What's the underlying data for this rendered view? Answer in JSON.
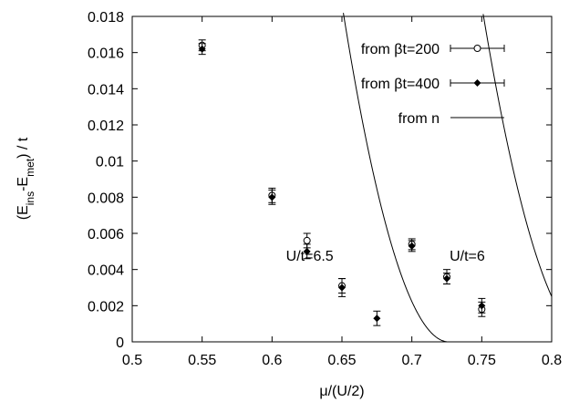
{
  "chart_data": {
    "type": "scatter",
    "xlabel": "μ/(U/2)",
    "ylabel_parts": {
      "pre": "(E",
      "sub1": "ins",
      "mid": "-E",
      "sub2": "met",
      "post": ") / t"
    },
    "xlim": [
      0.5,
      0.8
    ],
    "ylim": [
      0,
      0.018
    ],
    "xticks": [
      0.5,
      0.55,
      0.6,
      0.65,
      0.7,
      0.75,
      0.8
    ],
    "xtick_labels": [
      "0.5",
      "0.55",
      "0.6",
      "0.65",
      "0.7",
      "0.75",
      "0.8"
    ],
    "yticks": [
      0,
      0.002,
      0.004,
      0.006,
      0.008,
      0.01,
      0.012,
      0.014,
      0.016,
      0.018
    ],
    "ytick_labels": [
      "0",
      "0.002",
      "0.004",
      "0.006",
      "0.008",
      "0.01",
      "0.012",
      "0.014",
      "0.016",
      "0.018"
    ],
    "grid": false,
    "legend_position": "top-right",
    "series": [
      {
        "name": "from βt=200",
        "marker": "open-circle",
        "points": [
          {
            "x": 0.55,
            "y": 0.0164,
            "err": 0.0003
          },
          {
            "x": 0.6,
            "y": 0.0081,
            "err": 0.0004
          },
          {
            "x": 0.625,
            "y": 0.0056,
            "err": 0.0004
          },
          {
            "x": 0.65,
            "y": 0.0031,
            "err": 0.0004
          },
          {
            "x": 0.7,
            "y": 0.0054,
            "err": 0.0003
          },
          {
            "x": 0.725,
            "y": 0.0036,
            "err": 0.0004
          },
          {
            "x": 0.75,
            "y": 0.0018,
            "err": 0.0004
          }
        ]
      },
      {
        "name": "from βt=400",
        "marker": "filled-diamond",
        "points": [
          {
            "x": 0.55,
            "y": 0.0162,
            "err": 0.0003
          },
          {
            "x": 0.6,
            "y": 0.008,
            "err": 0.0004
          },
          {
            "x": 0.625,
            "y": 0.005,
            "err": 0.0004
          },
          {
            "x": 0.65,
            "y": 0.003,
            "err": 0.0005
          },
          {
            "x": 0.675,
            "y": 0.0013,
            "err": 0.0004
          },
          {
            "x": 0.7,
            "y": 0.0053,
            "err": 0.0003
          },
          {
            "x": 0.725,
            "y": 0.0035,
            "err": 0.0003
          },
          {
            "x": 0.75,
            "y": 0.002,
            "err": 0.0004
          }
        ]
      },
      {
        "name": "from n",
        "marker": "line",
        "curves": [
          {
            "label": "U/t=6.5",
            "coef": 3.2,
            "x0": 0.7264
          },
          {
            "label": "U/t=6",
            "coef": 2.98,
            "x0": 0.829
          }
        ]
      }
    ],
    "annotations": [
      {
        "text": "U/t=6.5",
        "x": 0.61,
        "y": 0.0045
      },
      {
        "text": "U/t=6",
        "x": 0.727,
        "y": 0.0045
      }
    ]
  }
}
